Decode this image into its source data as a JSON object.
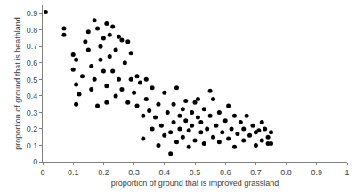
{
  "chart_data": {
    "type": "scatter",
    "xlabel": "proportion of ground that is improved grassland",
    "ylabel": "proportion of ground that is heathland",
    "color": "#000000",
    "marker": "circle",
    "grid": false,
    "xlim": [
      0,
      1
    ],
    "xticks": [
      0,
      0.1,
      0.2,
      0.3,
      0.4,
      0.5,
      0.6,
      0.7,
      0.8,
      0.9,
      1
    ],
    "ylim": [
      0,
      0.95
    ],
    "yticks": [
      0,
      0.1,
      0.2,
      0.3,
      0.4,
      0.5,
      0.6,
      0.7,
      0.8,
      0.9
    ],
    "x": [
      0.01,
      0.07,
      0.07,
      0.1,
      0.11,
      0.1,
      0.11,
      0.11,
      0.12,
      0.13,
      0.14,
      0.15,
      0.15,
      0.16,
      0.16,
      0.17,
      0.18,
      0.17,
      0.18,
      0.19,
      0.19,
      0.2,
      0.2,
      0.21,
      0.21,
      0.21,
      0.22,
      0.22,
      0.23,
      0.23,
      0.24,
      0.24,
      0.25,
      0.25,
      0.26,
      0.26,
      0.27,
      0.28,
      0.28,
      0.29,
      0.29,
      0.3,
      0.31,
      0.31,
      0.32,
      0.33,
      0.34,
      0.34,
      0.35,
      0.36,
      0.33,
      0.36,
      0.37,
      0.38,
      0.38,
      0.39,
      0.4,
      0.4,
      0.41,
      0.42,
      0.42,
      0.43,
      0.43,
      0.44,
      0.44,
      0.45,
      0.45,
      0.46,
      0.46,
      0.47,
      0.47,
      0.48,
      0.48,
      0.49,
      0.49,
      0.5,
      0.5,
      0.51,
      0.51,
      0.52,
      0.52,
      0.53,
      0.53,
      0.54,
      0.55,
      0.55,
      0.56,
      0.56,
      0.57,
      0.58,
      0.58,
      0.59,
      0.6,
      0.61,
      0.61,
      0.62,
      0.63,
      0.63,
      0.64,
      0.65,
      0.66,
      0.66,
      0.67,
      0.68,
      0.69,
      0.7,
      0.7,
      0.71,
      0.72,
      0.72,
      0.73,
      0.74,
      0.74,
      0.75,
      0.75
    ],
    "values": [
      0.91,
      0.81,
      0.77,
      0.65,
      0.62,
      0.56,
      0.47,
      0.35,
      0.41,
      0.52,
      0.73,
      0.79,
      0.68,
      0.58,
      0.44,
      0.86,
      0.81,
      0.5,
      0.34,
      0.62,
      0.7,
      0.75,
      0.55,
      0.84,
      0.46,
      0.36,
      0.77,
      0.64,
      0.82,
      0.55,
      0.68,
      0.4,
      0.76,
      0.5,
      0.74,
      0.44,
      0.6,
      0.73,
      0.36,
      0.66,
      0.5,
      0.42,
      0.52,
      0.34,
      0.48,
      0.28,
      0.38,
      0.5,
      0.31,
      0.45,
      0.14,
      0.2,
      0.27,
      0.1,
      0.35,
      0.22,
      0.42,
      0.16,
      0.3,
      0.18,
      0.05,
      0.24,
      0.35,
      0.12,
      0.45,
      0.28,
      0.2,
      0.32,
      0.15,
      0.37,
      0.25,
      0.19,
      0.09,
      0.3,
      0.22,
      0.36,
      0.13,
      0.27,
      0.38,
      0.18,
      0.24,
      0.11,
      0.32,
      0.2,
      0.28,
      0.43,
      0.15,
      0.38,
      0.22,
      0.3,
      0.12,
      0.18,
      0.25,
      0.34,
      0.14,
      0.2,
      0.09,
      0.28,
      0.17,
      0.24,
      0.2,
      0.13,
      0.28,
      0.16,
      0.22,
      0.18,
      0.1,
      0.19,
      0.24,
      0.13,
      0.2,
      0.15,
      0.11,
      0.18,
      0.11
    ]
  }
}
